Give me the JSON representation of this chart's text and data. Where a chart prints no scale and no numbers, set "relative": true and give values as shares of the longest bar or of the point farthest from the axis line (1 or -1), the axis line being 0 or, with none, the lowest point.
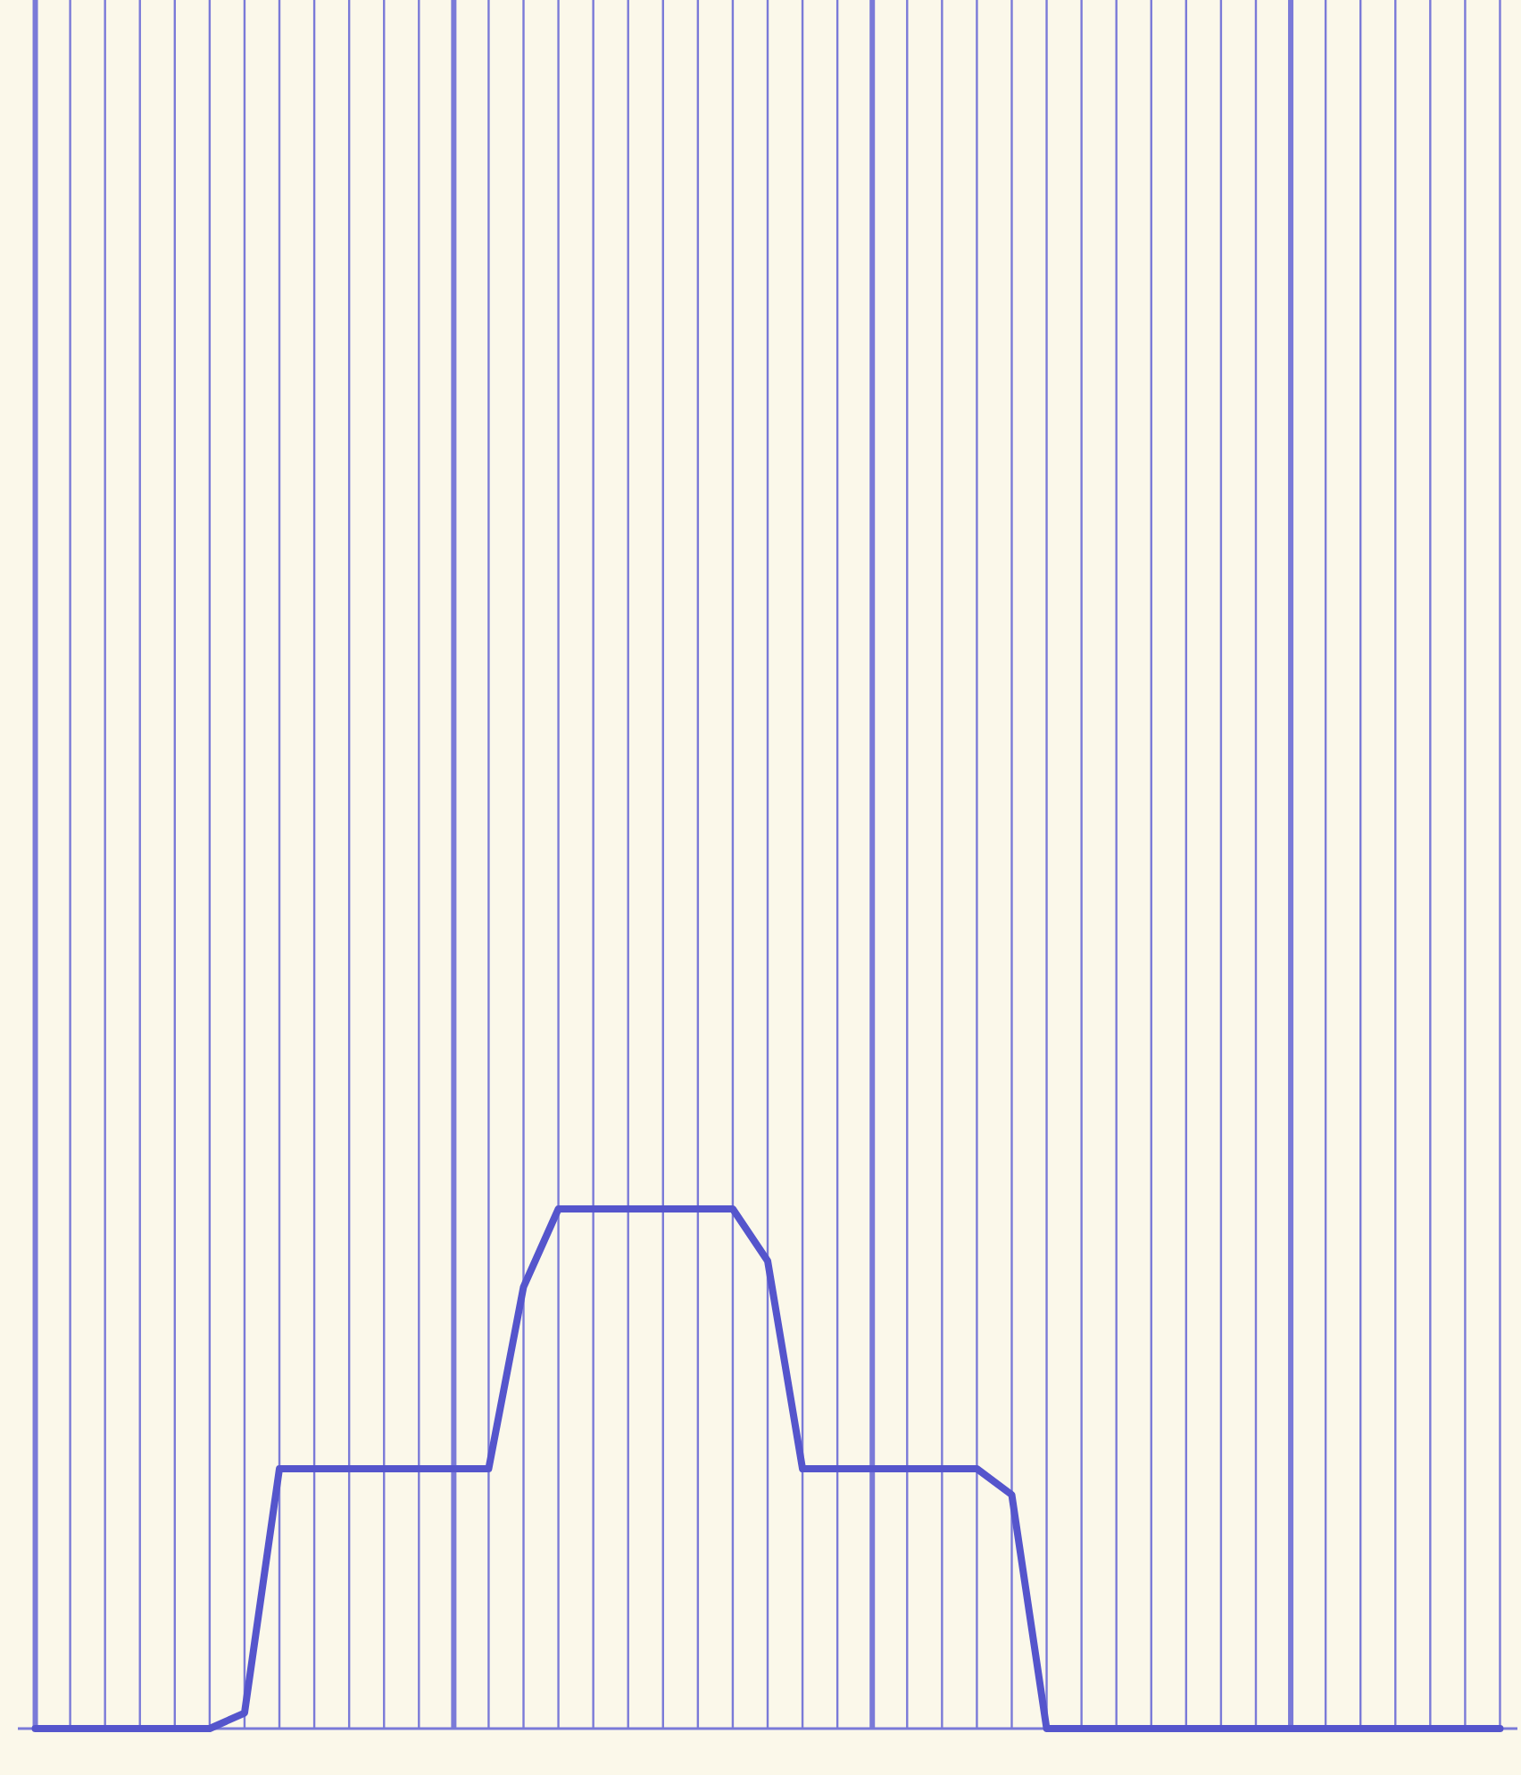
{
  "chart_data": {
    "type": "line",
    "relative": true,
    "grid": "x",
    "color": "#5555cc",
    "categories": [
      null,
      null,
      null,
      null,
      null,
      null,
      null,
      null,
      null,
      null,
      null,
      null,
      null,
      null,
      null,
      null,
      null,
      null,
      null,
      null,
      null,
      null,
      null,
      null,
      null,
      null,
      null,
      null,
      null,
      null,
      null,
      null,
      null,
      null,
      null,
      null,
      null,
      null,
      null,
      null,
      null,
      null,
      null
    ],
    "values": [
      0,
      0,
      0,
      0,
      0,
      0,
      0.03,
      0.5,
      0.5,
      0.5,
      0.5,
      0.5,
      0.5,
      0.5,
      0.85,
      1,
      1,
      1,
      1,
      1,
      1,
      0.9,
      0.5,
      0.5,
      0.5,
      0.5,
      0.5,
      0.5,
      0.45,
      0,
      0,
      0,
      0,
      0,
      0,
      0,
      0,
      0,
      0,
      0,
      0,
      0,
      0
    ]
  }
}
